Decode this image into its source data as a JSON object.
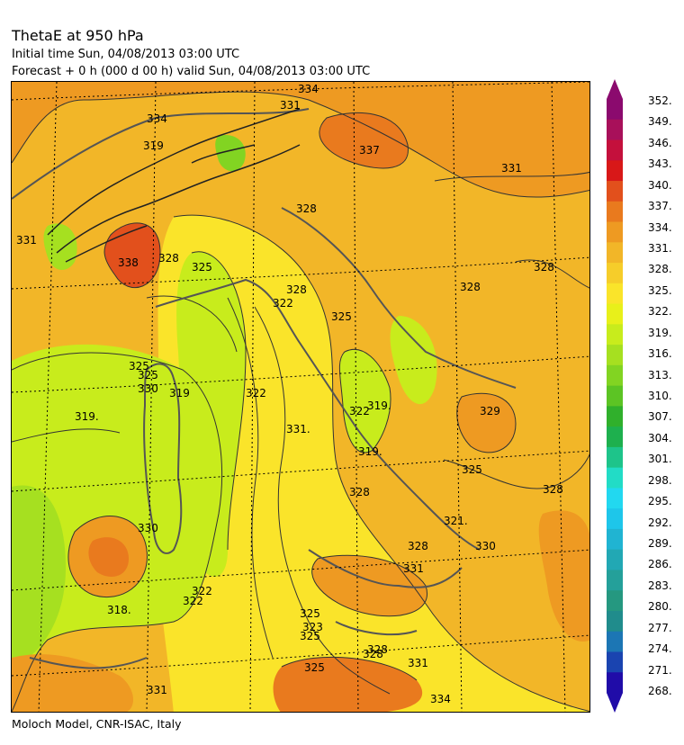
{
  "header": {
    "title": "ThetaE at 950 hPa",
    "initial_time": "Initial time  Sun, 04/08/2013  03:00 UTC",
    "forecast": "Forecast  +    0 h  (000 d 00 h)  valid Sun, 04/08/2013 03:00 UTC"
  },
  "footer": "Moloch Model, CNR-ISAC, Italy",
  "colorbar": {
    "labels": [
      "352.",
      "349.",
      "346.",
      "343.",
      "340.",
      "337.",
      "334.",
      "331.",
      "328.",
      "325.",
      "322.",
      "319.",
      "316.",
      "313.",
      "310.",
      "307.",
      "304.",
      "301.",
      "298.",
      "295.",
      "292.",
      "289.",
      "286.",
      "283.",
      "280.",
      "277.",
      "274.",
      "271.",
      "268."
    ],
    "colors": [
      "#8b0a6e",
      "#a8105a",
      "#c4103c",
      "#d81818",
      "#e2501c",
      "#e97a1e",
      "#ee9a22",
      "#f2b628",
      "#f6cd2a",
      "#fae42a",
      "#e8f01a",
      "#c8ec1c",
      "#a6e020",
      "#82d422",
      "#5cc424",
      "#30b02c",
      "#1eb04e",
      "#1ec48a",
      "#22dcc6",
      "#22d8f0",
      "#1ec6ea",
      "#20b4d2",
      "#22a8b4",
      "#24a09a",
      "#259880",
      "#208c8c",
      "#1c76b4",
      "#1a44b0",
      "#200ca8"
    ]
  },
  "map": {
    "value_labels": [
      "334",
      "331",
      "334",
      "337",
      "331",
      "319",
      "328",
      "331",
      "338",
      "328",
      "325",
      "322",
      "325",
      "328",
      "328",
      "325",
      "322",
      "325",
      "319",
      "319.",
      "330",
      "319.",
      "331.",
      "329",
      "325",
      "328",
      "319.",
      "322",
      "325",
      "325",
      "328",
      "321.",
      "330",
      "328",
      "331",
      "328",
      "318.",
      "322",
      "330",
      "328",
      "323",
      "325",
      "328",
      "331",
      "331",
      "334",
      "322"
    ],
    "land_color": "#ffffff"
  }
}
